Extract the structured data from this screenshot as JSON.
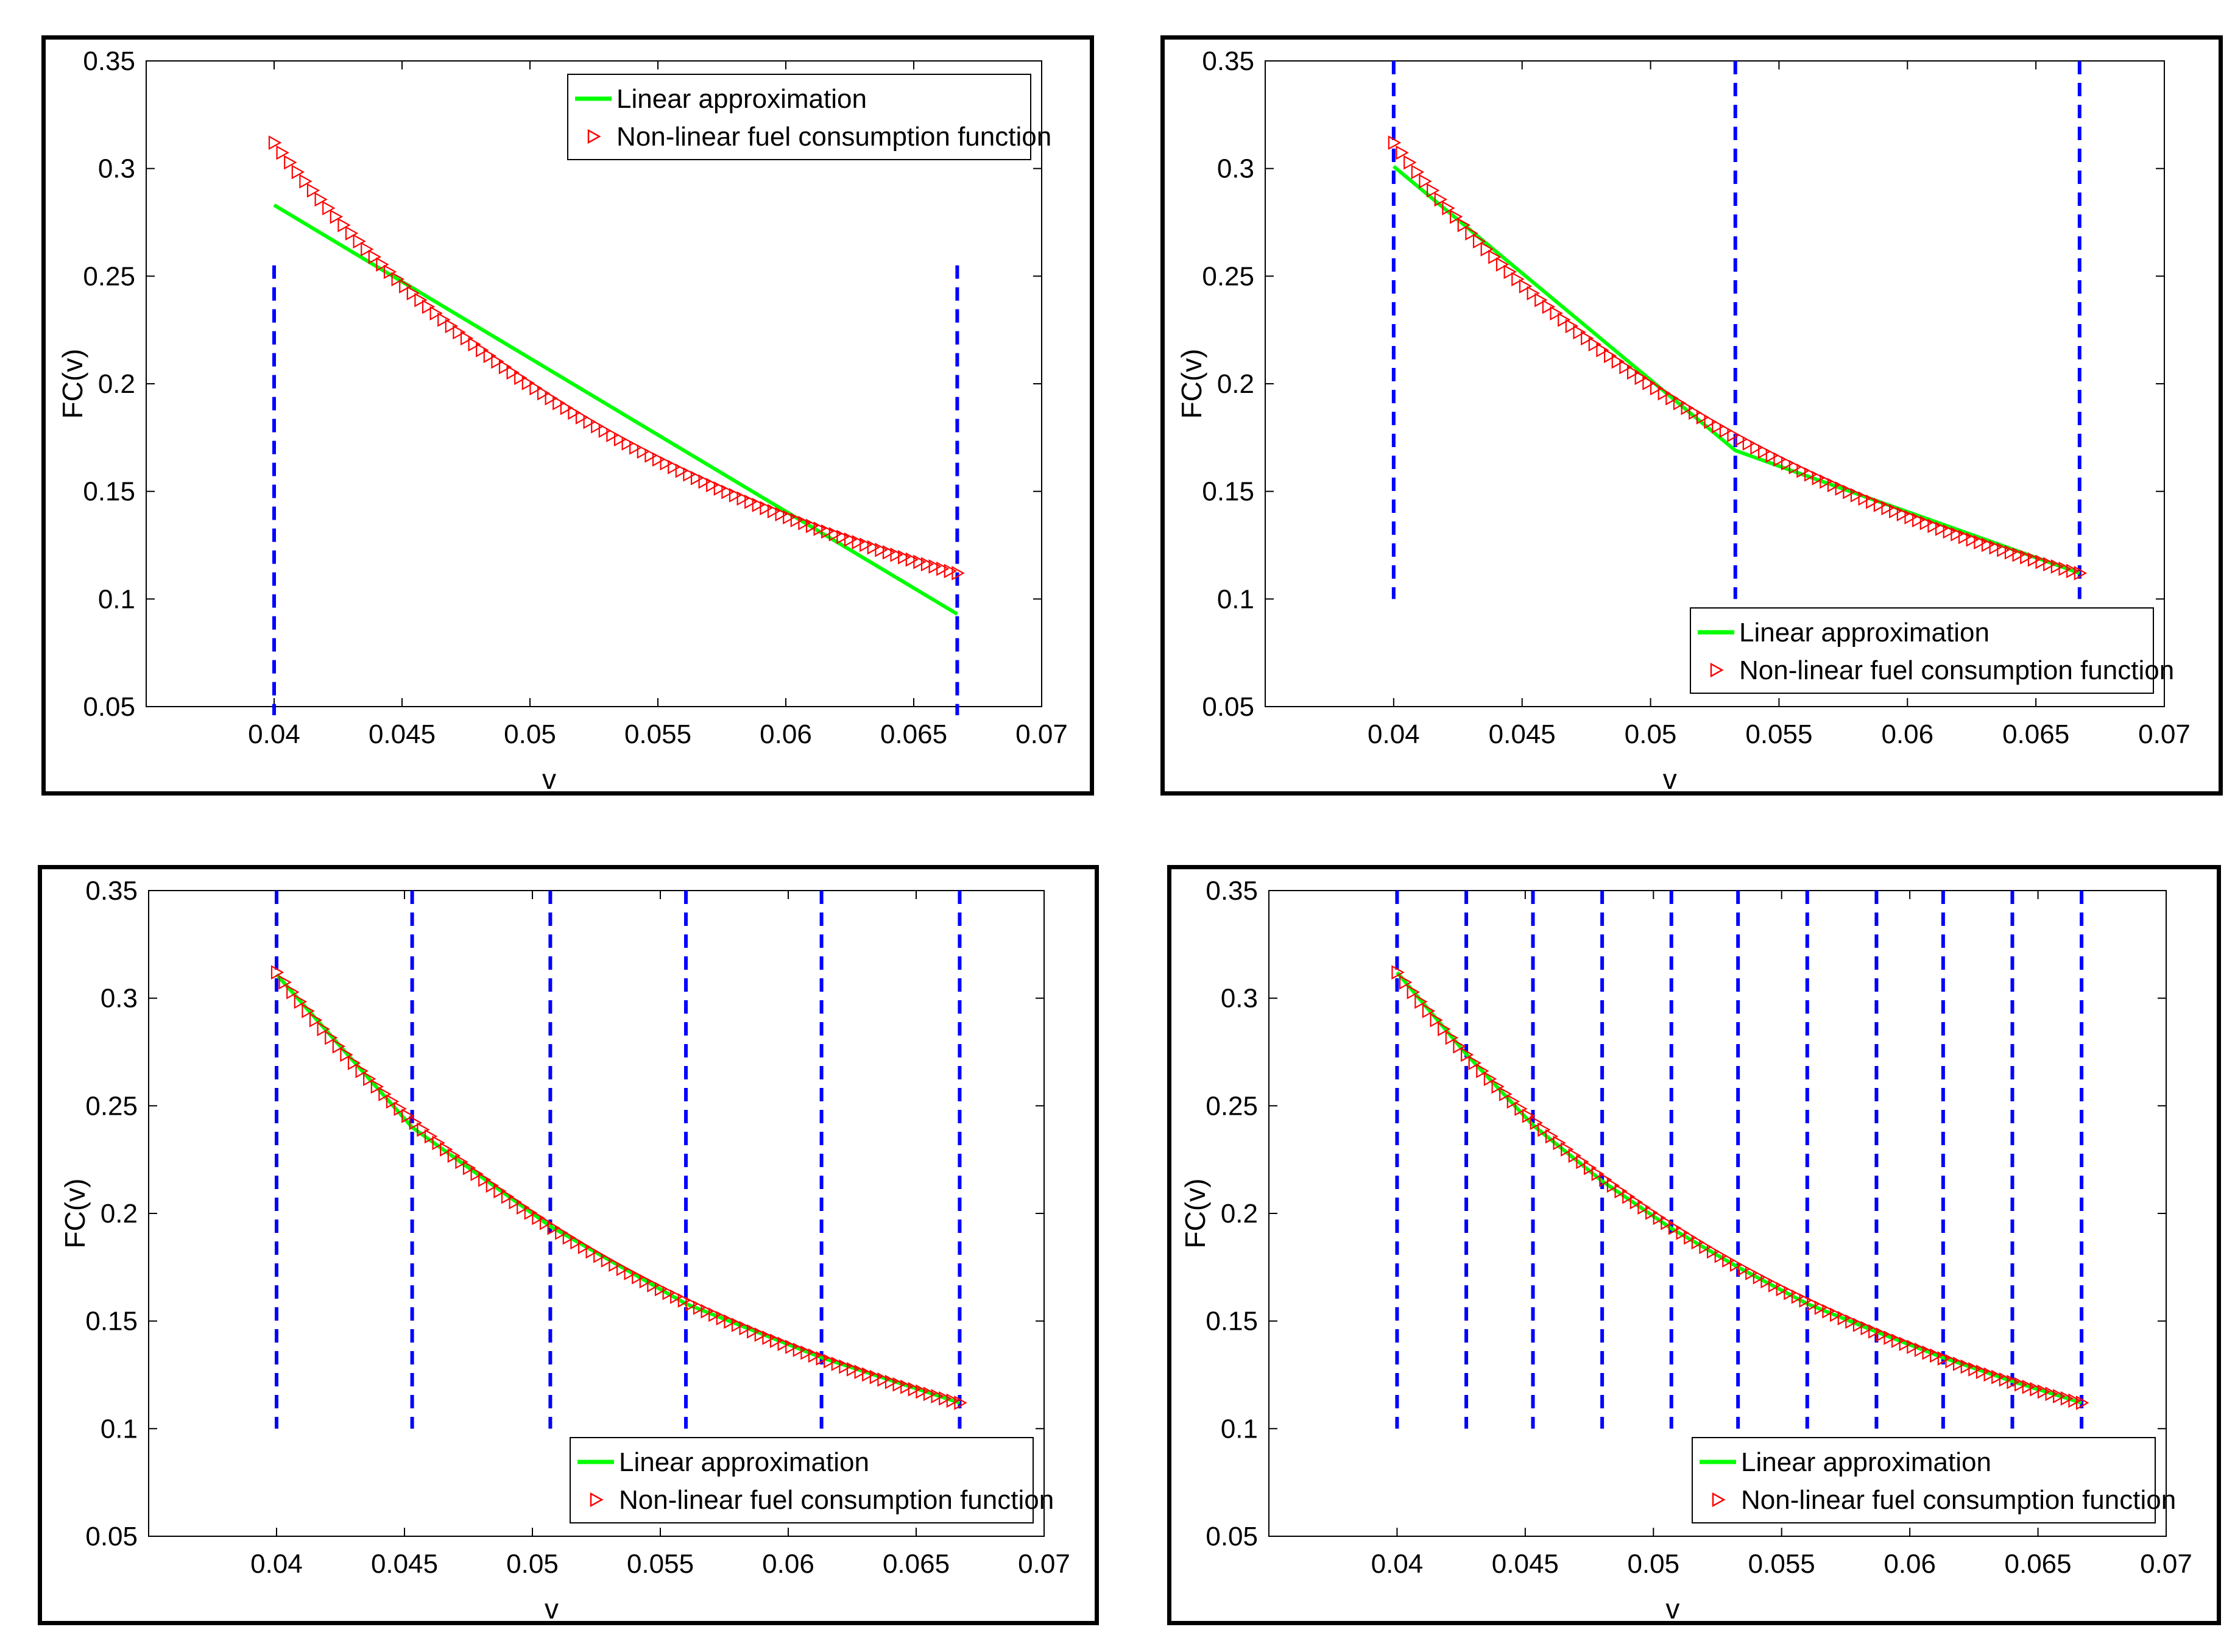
{
  "colors": {
    "linear": "#00ff00",
    "nonlinear": "#ff0000",
    "breakpoints": "#0000ff",
    "axis": "#000000"
  },
  "chart_data": [
    {
      "type": "line",
      "xlabel": "v",
      "ylabel": "FC(v)",
      "xlim": [
        0.035,
        0.07
      ],
      "ylim": [
        0.05,
        0.35
      ],
      "x_ticks": [
        "0.04",
        "0.045",
        "0.05",
        "0.055",
        "0.06",
        "0.065",
        "0.07"
      ],
      "y_ticks": [
        "0.05",
        "0.1",
        "0.15",
        "0.2",
        "0.25",
        "0.3",
        "0.35"
      ],
      "legend_position": "top-right",
      "legend": [
        "Linear approximation",
        "Non-linear fuel consumption function"
      ],
      "breakpoints": [
        0.04,
        0.0667
      ],
      "breakpoint_y_range": [
        0.046,
        0.255
      ],
      "linear_x": [
        0.04,
        0.0667
      ],
      "linear_y": [
        0.283,
        0.093
      ],
      "nonlinear_range": [
        0.04,
        0.0667
      ],
      "nonlinear_count": 90
    },
    {
      "type": "line",
      "xlabel": "v",
      "ylabel": "FC(v)",
      "xlim": [
        0.035,
        0.07
      ],
      "ylim": [
        0.05,
        0.35
      ],
      "x_ticks": [
        "0.04",
        "0.045",
        "0.05",
        "0.055",
        "0.06",
        "0.065",
        "0.07"
      ],
      "y_ticks": [
        "0.05",
        "0.1",
        "0.15",
        "0.2",
        "0.25",
        "0.3",
        "0.35"
      ],
      "legend_position": "bottom-right",
      "legend": [
        "Linear approximation",
        "Non-linear fuel consumption function"
      ],
      "breakpoints": [
        0.04,
        0.0533,
        0.0667
      ],
      "breakpoint_y_range": [
        0.1,
        0.35
      ],
      "linear_x": [
        0.04,
        0.0533,
        0.0667
      ],
      "linear_y": [
        0.301,
        0.169,
        0.112
      ],
      "nonlinear_range": [
        0.04,
        0.0667
      ],
      "nonlinear_count": 90
    },
    {
      "type": "line",
      "xlabel": "v",
      "ylabel": "FC(v)",
      "xlim": [
        0.035,
        0.07
      ],
      "ylim": [
        0.05,
        0.35
      ],
      "x_ticks": [
        "0.04",
        "0.045",
        "0.05",
        "0.055",
        "0.06",
        "0.065",
        "0.07"
      ],
      "y_ticks": [
        "0.05",
        "0.1",
        "0.15",
        "0.2",
        "0.25",
        "0.3",
        "0.35"
      ],
      "legend_position": "bottom-right",
      "legend": [
        "Linear approximation",
        "Non-linear fuel consumption function"
      ],
      "breakpoints": [
        0.04,
        0.0453,
        0.0507,
        0.056,
        0.0613,
        0.0667
      ],
      "breakpoint_y_range": [
        0.1,
        0.35
      ],
      "linear_x": [
        0.04,
        0.0453,
        0.0507,
        0.056,
        0.0613,
        0.0667
      ],
      "linear_y": [
        0.311,
        0.24,
        0.194,
        0.158,
        0.133,
        0.112
      ],
      "nonlinear_range": [
        0.04,
        0.0667
      ],
      "nonlinear_count": 90
    },
    {
      "type": "line",
      "xlabel": "v",
      "ylabel": "FC(v)",
      "xlim": [
        0.035,
        0.07
      ],
      "ylim": [
        0.05,
        0.35
      ],
      "x_ticks": [
        "0.04",
        "0.045",
        "0.05",
        "0.055",
        "0.06",
        "0.065",
        "0.07"
      ],
      "y_ticks": [
        "0.05",
        "0.1",
        "0.15",
        "0.2",
        "0.25",
        "0.3",
        "0.35"
      ],
      "legend_position": "bottom-right",
      "legend": [
        "Linear approximation",
        "Non-linear fuel consumption function"
      ],
      "breakpoints": [
        0.04,
        0.0427,
        0.0453,
        0.048,
        0.0507,
        0.0533,
        0.056,
        0.0587,
        0.0613,
        0.064,
        0.0667
      ],
      "breakpoint_y_range": [
        0.1,
        0.35
      ],
      "linear_x": [
        0.04,
        0.0427,
        0.0453,
        0.048,
        0.0507,
        0.0533,
        0.056,
        0.0587,
        0.0613,
        0.064,
        0.0667
      ],
      "linear_y": [
        0.312,
        0.274,
        0.241,
        0.215,
        0.193,
        0.175,
        0.158,
        0.145,
        0.133,
        0.122,
        0.112
      ],
      "nonlinear_range": [
        0.04,
        0.0667
      ],
      "nonlinear_count": 90
    }
  ]
}
